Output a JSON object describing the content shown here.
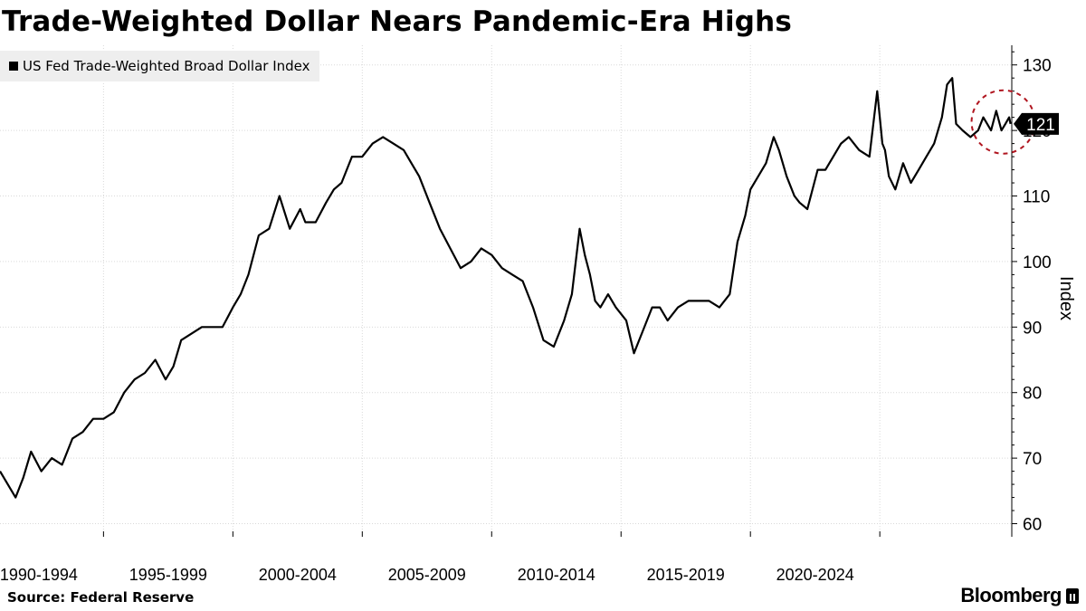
{
  "title": "Trade-Weighted Dollar Nears Pandemic-Era Highs",
  "legend_label": "US Fed Trade-Weighted Broad Dollar Index",
  "source": "Source: Federal Reserve",
  "brand": "Bloomberg",
  "colors": {
    "line": "#000000",
    "grid": "#d9d9d9",
    "highlight_circle": "#b0151f",
    "callout_bg": "#000000",
    "callout_text": "#ffffff",
    "legend_bg": "#eeeeee"
  },
  "chart_data": {
    "type": "line",
    "title": "Trade-Weighted Dollar Nears Pandemic-Era Highs",
    "ylabel": "Index",
    "ylim": [
      58,
      133
    ],
    "yticks": [
      60,
      70,
      80,
      90,
      100,
      110,
      120,
      130
    ],
    "x_range": [
      1986.0,
      2025.1
    ],
    "x_period_labels": [
      "1990-1994",
      "1995-1999",
      "2000-2004",
      "2005-2009",
      "2010-2014",
      "2015-2019",
      "2020-2024"
    ],
    "x_period_starts": [
      1990,
      1995,
      2000,
      2005,
      2010,
      2015,
      2020
    ],
    "grid": true,
    "legend_position": "top-left",
    "last_value_label": "121",
    "annotation": "dashed red circle around the latest values",
    "series": [
      {
        "name": "US Fed Trade-Weighted Broad Dollar Index",
        "x": [
          1986.0,
          1986.3,
          1986.6,
          1986.9,
          1987.2,
          1987.6,
          1988.0,
          1988.4,
          1988.8,
          1989.2,
          1989.6,
          1990.0,
          1990.4,
          1990.8,
          1991.2,
          1991.6,
          1992.0,
          1992.4,
          1992.7,
          1993.0,
          1993.4,
          1993.8,
          1994.2,
          1994.6,
          1995.0,
          1995.3,
          1995.6,
          1996.0,
          1996.4,
          1996.8,
          1997.2,
          1997.6,
          1997.8,
          1998.2,
          1998.6,
          1998.9,
          1999.2,
          1999.6,
          2000.0,
          2000.4,
          2000.8,
          2001.2,
          2001.6,
          2001.9,
          2002.2,
          2002.6,
          2003.0,
          2003.4,
          2003.8,
          2004.2,
          2004.6,
          2005.0,
          2005.4,
          2005.8,
          2006.2,
          2006.6,
          2007.0,
          2007.4,
          2007.8,
          2008.1,
          2008.4,
          2008.6,
          2008.8,
          2009.0,
          2009.2,
          2009.5,
          2009.8,
          2010.2,
          2010.5,
          2010.8,
          2011.2,
          2011.5,
          2011.8,
          2012.2,
          2012.6,
          2013.0,
          2013.4,
          2013.8,
          2014.2,
          2014.5,
          2014.8,
          2015.0,
          2015.3,
          2015.6,
          2015.9,
          2016.1,
          2016.4,
          2016.7,
          2016.9,
          2017.2,
          2017.6,
          2017.9,
          2018.2,
          2018.5,
          2018.8,
          2019.2,
          2019.6,
          2019.9,
          2020.1,
          2020.2,
          2020.35,
          2020.6,
          2020.9,
          2021.2,
          2021.5,
          2021.8,
          2022.1,
          2022.4,
          2022.6,
          2022.8,
          2022.95,
          2023.2,
          2023.5,
          2023.8,
          2024.0,
          2024.3,
          2024.5,
          2024.7,
          2024.85,
          2025.0,
          2025.05
        ],
        "values": [
          68,
          66,
          64,
          67,
          71,
          68,
          70,
          69,
          73,
          74,
          76,
          76,
          77,
          80,
          82,
          83,
          85,
          82,
          84,
          88,
          89,
          90,
          90,
          90,
          93,
          95,
          98,
          104,
          105,
          110,
          105,
          108,
          106,
          106,
          109,
          111,
          112,
          116,
          116,
          118,
          119,
          118,
          117,
          115,
          113,
          109,
          105,
          102,
          99,
          100,
          102,
          101,
          99,
          98,
          97,
          93,
          88,
          87,
          91,
          95,
          105,
          101,
          98,
          94,
          93,
          95,
          93,
          91,
          86,
          89,
          93,
          93,
          91,
          93,
          94,
          94,
          94,
          93,
          95,
          103,
          107,
          111,
          113,
          115,
          119,
          117,
          113,
          110,
          109,
          108,
          114,
          114,
          116,
          118,
          119,
          117,
          116,
          126,
          118,
          117,
          113,
          111,
          115,
          112,
          114,
          116,
          118,
          122,
          127,
          128,
          121,
          120,
          119,
          120,
          122,
          120,
          123,
          120,
          121,
          122,
          121
        ]
      }
    ]
  }
}
